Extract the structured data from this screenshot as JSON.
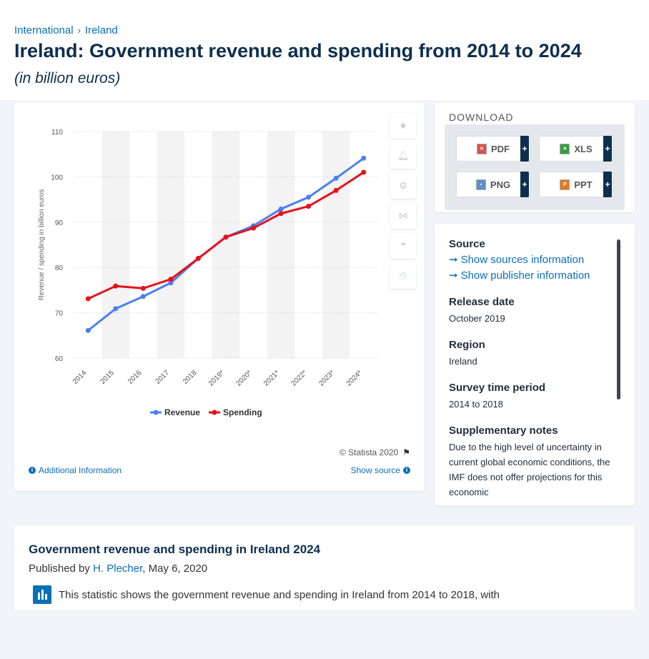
{
  "breadcrumb": {
    "items": [
      "International",
      "Ireland"
    ]
  },
  "page": {
    "title": "Ireland: Government revenue and spending from 2014 to 2024",
    "subtitle": "(in billion euros)"
  },
  "chart_data": {
    "type": "line",
    "x": [
      "2014",
      "2015",
      "2016",
      "2017",
      "2018",
      "2019*",
      "2020*",
      "2021*",
      "2022*",
      "2023*",
      "2024*"
    ],
    "series": [
      {
        "name": "Revenue",
        "color": "#4a7ff0",
        "values": [
          66.1,
          70.9,
          73.6,
          76.6,
          82.0,
          86.7,
          89.2,
          92.9,
          95.5,
          99.7,
          104.1
        ]
      },
      {
        "name": "Spending",
        "color": "#e8101a",
        "values": [
          73.1,
          75.9,
          75.4,
          77.4,
          82.0,
          86.7,
          88.7,
          91.9,
          93.5,
          97.0,
          101.0
        ]
      }
    ],
    "ylabel": "Revenue / spending in billion euros",
    "ylim": [
      60,
      110
    ],
    "yticks": [
      60,
      70,
      80,
      90,
      100,
      110
    ],
    "grid": true,
    "legend": "bottom"
  },
  "chart_card": {
    "copyright": "© Statista 2020",
    "additional_info": "Additional Information",
    "show_source": "Show source"
  },
  "download": {
    "title": "DOWNLOAD",
    "buttons": [
      {
        "label": "PDF",
        "color": "#d9534f"
      },
      {
        "label": "XLS",
        "color": "#3c9a45"
      },
      {
        "label": "PNG",
        "color": "#5a8fc7"
      },
      {
        "label": "PPT",
        "color": "#e07a26"
      }
    ],
    "plus": "+"
  },
  "info": {
    "source_heading": "Source",
    "sources_link": "Show sources information",
    "publisher_link": "Show publisher information",
    "release_heading": "Release date",
    "release_value": "October 2019",
    "region_heading": "Region",
    "region_value": "Ireland",
    "survey_heading": "Survey time period",
    "survey_value": "2014 to 2018",
    "notes_heading": "Supplementary notes",
    "notes_value": "Due to the high level of uncertainty in current global economic conditions, the IMF does not offer projections for this economic"
  },
  "description": {
    "title": "Government revenue and spending in Ireland 2024",
    "published_prefix": "Published by ",
    "author": "H. Plecher",
    "date": ", May 6, 2020",
    "text": "This statistic shows the government revenue and spending in Ireland from 2014 to 2018, with"
  }
}
